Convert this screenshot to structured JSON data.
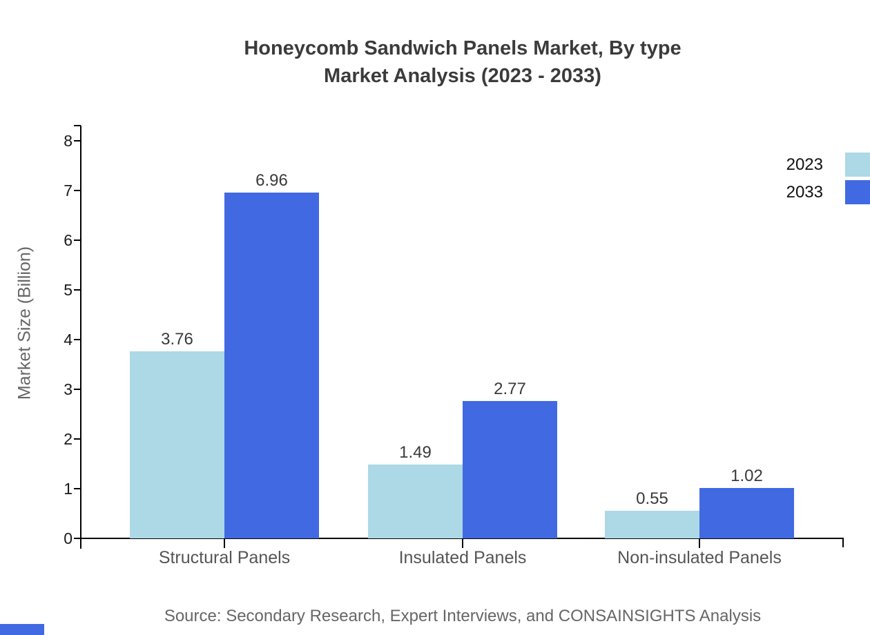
{
  "header": {
    "title": "Honeycomb Sandwich Panels Market, By type",
    "subtitle": "Market Analysis (2023 - 2033)"
  },
  "chart_data": {
    "type": "bar",
    "title": "Honeycomb Sandwich Panels Market, By type Market Analysis (2023 - 2033)",
    "categories": [
      "Structural Panels",
      "Insulated Panels",
      "Non-insulated Panels"
    ],
    "series": [
      {
        "name": "2023",
        "color": "#ADD8E6",
        "values": [
          3.76,
          1.49,
          0.55
        ]
      },
      {
        "name": "2033",
        "color": "#4169E1",
        "values": [
          6.96,
          2.77,
          1.02
        ]
      }
    ],
    "xlabel": "",
    "ylabel": "Market Size (Billion)",
    "ylim": [
      0,
      8
    ],
    "yticks": [
      0,
      1,
      2,
      3,
      4,
      5,
      6,
      7,
      8
    ],
    "grid": false,
    "legend_position": "top-right-outside",
    "value_labels": true
  },
  "footer": {
    "source": "Source: Secondary Research, Expert Interviews, and CONSAINSIGHTS Analysis"
  },
  "branding": {
    "accent_color": "#4169E1"
  }
}
